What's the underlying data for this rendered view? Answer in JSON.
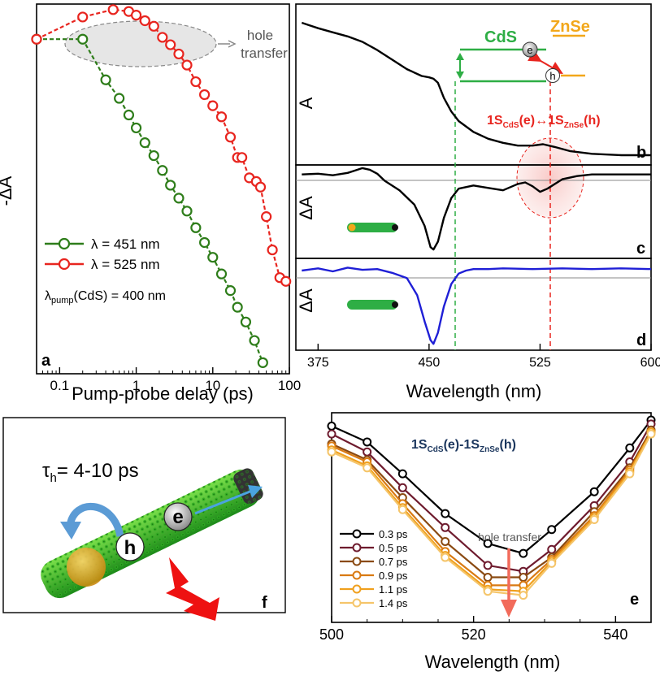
{
  "chart_data": [
    {
      "panel": "a",
      "type": "line",
      "xscale": "log",
      "xlim": [
        0.05,
        100
      ],
      "xticks": [
        "0.1",
        "1",
        "10",
        "100"
      ],
      "xlabel": "Pump-probe delay (ps)",
      "ylabel": "-ΔA",
      "annotation": "hole transfer",
      "pump_note": {
        "main": "λ",
        "sub": "pump",
        "rest": "(CdS) = 400 nm"
      },
      "series": [
        {
          "name": "λ = 451 nm",
          "color": "#2e7d1a",
          "x": [
            0.05,
            0.2,
            0.4,
            0.6,
            0.8,
            1.0,
            1.3,
            1.7,
            2.2,
            2.8,
            3.6,
            4.6,
            6.0,
            7.8,
            10,
            13,
            17,
            21,
            27,
            35,
            45
          ],
          "y": [
            0.905,
            0.905,
            0.795,
            0.745,
            0.7,
            0.665,
            0.625,
            0.59,
            0.55,
            0.51,
            0.475,
            0.44,
            0.395,
            0.355,
            0.315,
            0.27,
            0.225,
            0.18,
            0.14,
            0.09,
            0.03
          ]
        },
        {
          "name": "λ = 525 nm",
          "color": "#e8251f",
          "x": [
            0.05,
            0.2,
            0.5,
            0.8,
            1.0,
            1.3,
            1.7,
            2.2,
            2.8,
            3.6,
            4.6,
            6.0,
            7.8,
            10,
            13,
            17,
            21,
            24,
            30,
            37,
            42,
            50,
            60,
            75,
            90
          ],
          "y": [
            0.905,
            0.965,
            0.985,
            0.98,
            0.97,
            0.955,
            0.94,
            0.91,
            0.89,
            0.865,
            0.835,
            0.79,
            0.755,
            0.725,
            0.695,
            0.64,
            0.585,
            0.585,
            0.53,
            0.52,
            0.505,
            0.425,
            0.335,
            0.26,
            0.25
          ]
        }
      ]
    },
    {
      "panel": "b",
      "type": "line",
      "xlim": [
        360,
        600
      ],
      "ylabel": "A",
      "labels": {
        "cds": "CdS",
        "znse": "ZnSe",
        "e": "e",
        "h": "h"
      },
      "assignment": {
        "p1": "1S",
        "s1": "CdS",
        "p2": "(e)",
        "arrow": "↔",
        "p3": "1S",
        "s2": "ZnSe",
        "p4": "(h)"
      },
      "series": [
        {
          "name": "",
          "color": "#000000",
          "x": [
            364,
            375,
            385,
            395,
            405,
            415,
            425,
            435,
            445,
            450,
            453,
            456,
            460,
            465,
            470,
            480,
            490,
            500,
            510,
            520,
            527,
            535,
            545,
            560,
            580,
            600
          ],
          "y": [
            1.0,
            0.96,
            0.93,
            0.9,
            0.86,
            0.8,
            0.73,
            0.66,
            0.61,
            0.6,
            0.59,
            0.56,
            0.45,
            0.35,
            0.28,
            0.2,
            0.15,
            0.12,
            0.1,
            0.1,
            0.11,
            0.09,
            0.06,
            0.04,
            0.03,
            0.03
          ]
        }
      ]
    },
    {
      "panel": "c",
      "type": "line",
      "xlim": [
        360,
        600
      ],
      "ylabel": "ΔA",
      "series": [
        {
          "name": "",
          "color": "#000000",
          "x": [
            364,
            375,
            385,
            395,
            400,
            405,
            410,
            415,
            420,
            430,
            440,
            447,
            451,
            453,
            456,
            460,
            465,
            470,
            480,
            490,
            500,
            510,
            515,
            520,
            525,
            530,
            540,
            550,
            560,
            580,
            600
          ],
          "y": [
            0.0,
            0.01,
            -0.01,
            0.02,
            0.05,
            0.08,
            0.06,
            0.01,
            -0.08,
            -0.2,
            -0.38,
            -0.65,
            -0.92,
            -0.95,
            -0.85,
            -0.55,
            -0.3,
            -0.18,
            -0.14,
            -0.17,
            -0.2,
            -0.12,
            -0.1,
            -0.15,
            -0.22,
            -0.18,
            -0.06,
            -0.02,
            0.0,
            0.0,
            0.0
          ]
        }
      ]
    },
    {
      "panel": "d",
      "type": "line",
      "xlim": [
        360,
        600
      ],
      "xticks": [
        "375",
        "450",
        "525",
        "600"
      ],
      "xlabel": "Wavelength (nm)",
      "ylabel": "ΔA",
      "series": [
        {
          "name": "",
          "color": "#1f1fd6",
          "x": [
            364,
            375,
            385,
            395,
            405,
            415,
            425,
            435,
            442,
            447,
            451,
            453,
            456,
            460,
            465,
            470,
            475,
            480,
            490,
            500,
            520,
            540,
            560,
            580,
            600
          ],
          "y": [
            -0.02,
            0.01,
            -0.03,
            0.02,
            -0.01,
            0.0,
            -0.05,
            -0.12,
            -0.35,
            -0.7,
            -0.95,
            -1.0,
            -0.85,
            -0.5,
            -0.2,
            -0.06,
            -0.02,
            0.0,
            0.0,
            0.01,
            0.0,
            0.01,
            0.0,
            0.01,
            0.0
          ]
        }
      ]
    },
    {
      "panel": "e",
      "type": "line",
      "xlim": [
        500,
        545
      ],
      "xticks": [
        "500",
        "520",
        "540"
      ],
      "xlabel": "Wavelength (nm)",
      "title": {
        "p1": "1S",
        "s1": "CdS",
        "p2": "(e)-1S",
        "s2": "ZnSe",
        "p3": "(h)"
      },
      "annotation": "hole transfer",
      "x": [
        500,
        505,
        510,
        516,
        522,
        527,
        531,
        537,
        542,
        545
      ],
      "series": [
        {
          "name": "0.3 ps",
          "color": "#000000",
          "y": [
            0.97,
            0.89,
            0.73,
            0.53,
            0.38,
            0.33,
            0.45,
            0.64,
            0.86,
            1.0
          ]
        },
        {
          "name": "0.5 ps",
          "color": "#6e1b2e",
          "y": [
            0.93,
            0.84,
            0.66,
            0.46,
            0.27,
            0.24,
            0.35,
            0.57,
            0.79,
            0.98
          ]
        },
        {
          "name": "0.7 ps",
          "color": "#8a4a12",
          "y": [
            0.88,
            0.8,
            0.61,
            0.39,
            0.21,
            0.21,
            0.31,
            0.54,
            0.76,
            0.95
          ]
        },
        {
          "name": "0.9 ps",
          "color": "#d97a12",
          "y": [
            0.87,
            0.79,
            0.58,
            0.34,
            0.17,
            0.17,
            0.3,
            0.52,
            0.75,
            0.94
          ]
        },
        {
          "name": "1.1 ps",
          "color": "#f0a01e",
          "y": [
            0.85,
            0.77,
            0.56,
            0.32,
            0.15,
            0.14,
            0.29,
            0.51,
            0.74,
            0.94
          ]
        },
        {
          "name": "1.4 ps",
          "color": "#f5c56a",
          "y": [
            0.84,
            0.76,
            0.55,
            0.31,
            0.14,
            0.12,
            0.28,
            0.5,
            0.73,
            0.93
          ]
        }
      ]
    }
  ],
  "panel_f": {
    "tau": "τ",
    "tau_sub": "h",
    "tau_rest": "= 4-10 ps",
    "e": "e",
    "h": "h"
  },
  "panel_labels": {
    "a": "a",
    "b": "b",
    "c": "c",
    "d": "d",
    "e": "e",
    "f": "f"
  }
}
